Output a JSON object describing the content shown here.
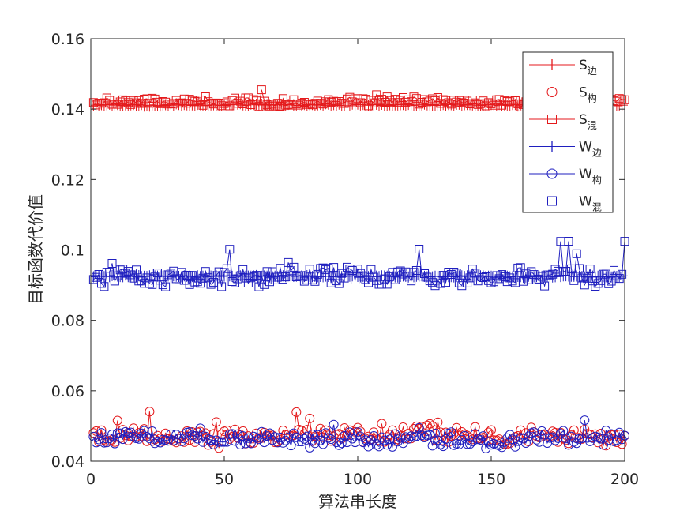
{
  "chart_data": {
    "type": "line",
    "xlabel": "算法串长度",
    "ylabel": "目标函数代价值",
    "xlim": [
      0,
      200
    ],
    "ylim": [
      0.04,
      0.16
    ],
    "x_ticks": [
      "0",
      "50",
      "100",
      "150",
      "200"
    ],
    "y_ticks": [
      "0.04",
      "0.06",
      "0.08",
      "0.1",
      "0.12",
      "0.14",
      "0.16"
    ],
    "grid": false,
    "legend_position": "top-right",
    "x": [
      1,
      200
    ],
    "series": [
      {
        "name": "S",
        "subscript": "边",
        "color": "#e41a1c",
        "marker": "plus",
        "level": 0.1412,
        "y_range": [
          0.1405,
          0.1418
        ]
      },
      {
        "name": "S",
        "subscript": "构",
        "color": "#e41a1c",
        "marker": "circle",
        "level": 0.047,
        "y_range": [
          0.0435,
          0.0555
        ]
      },
      {
        "name": "S",
        "subscript": "混",
        "color": "#e41a1c",
        "marker": "square",
        "level": 0.142,
        "y_range": [
          0.14,
          0.146
        ]
      },
      {
        "name": "W",
        "subscript": "边",
        "color": "#1f1fbf",
        "marker": "plus",
        "level": 0.0925,
        "y_range": [
          0.092,
          0.093
        ]
      },
      {
        "name": "W",
        "subscript": "构",
        "color": "#1f1fbf",
        "marker": "circle",
        "level": 0.0465,
        "y_range": [
          0.0435,
          0.055
        ]
      },
      {
        "name": "W",
        "subscript": "混",
        "color": "#1f1fbf",
        "marker": "square",
        "level": 0.0925,
        "y_range": [
          0.0885,
          0.1025
        ]
      }
    ]
  }
}
